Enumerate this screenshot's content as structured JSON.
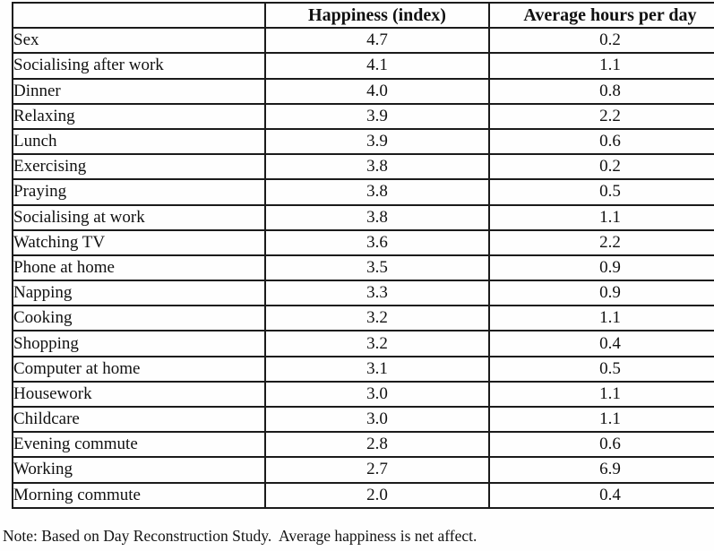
{
  "table": {
    "columns": [
      "",
      "Happiness (index)",
      "Average hours per day"
    ],
    "rows": [
      {
        "activity": "Sex",
        "happiness": "4.7",
        "hours": "0.2"
      },
      {
        "activity": "Socialising after work",
        "happiness": "4.1",
        "hours": "1.1"
      },
      {
        "activity": "Dinner",
        "happiness": "4.0",
        "hours": "0.8"
      },
      {
        "activity": "Relaxing",
        "happiness": "3.9",
        "hours": "2.2"
      },
      {
        "activity": "Lunch",
        "happiness": "3.9",
        "hours": "0.6"
      },
      {
        "activity": "Exercising",
        "happiness": "3.8",
        "hours": "0.2"
      },
      {
        "activity": "Praying",
        "happiness": "3.8",
        "hours": "0.5"
      },
      {
        "activity": "Socialising at work",
        "happiness": "3.8",
        "hours": "1.1"
      },
      {
        "activity": "Watching TV",
        "happiness": "3.6",
        "hours": "2.2"
      },
      {
        "activity": "Phone at home",
        "happiness": "3.5",
        "hours": "0.9"
      },
      {
        "activity": "Napping",
        "happiness": "3.3",
        "hours": "0.9"
      },
      {
        "activity": "Cooking",
        "happiness": "3.2",
        "hours": "1.1"
      },
      {
        "activity": "Shopping",
        "happiness": "3.2",
        "hours": "0.4"
      },
      {
        "activity": "Computer at home",
        "happiness": "3.1",
        "hours": "0.5"
      },
      {
        "activity": "Housework",
        "happiness": "3.0",
        "hours": "1.1"
      },
      {
        "activity": "Childcare",
        "happiness": "3.0",
        "hours": "1.1"
      },
      {
        "activity": "Evening commute",
        "happiness": "2.8",
        "hours": "0.6"
      },
      {
        "activity": "Working",
        "happiness": "2.7",
        "hours": "6.9"
      },
      {
        "activity": "Morning commute",
        "happiness": "2.0",
        "hours": "0.4"
      }
    ]
  },
  "note": "Note: Based on Day Reconstruction Study.  Average happiness is net affect.",
  "colors": {
    "border": "#1b1b1b",
    "text": "#111111",
    "background": "#fefefe"
  }
}
